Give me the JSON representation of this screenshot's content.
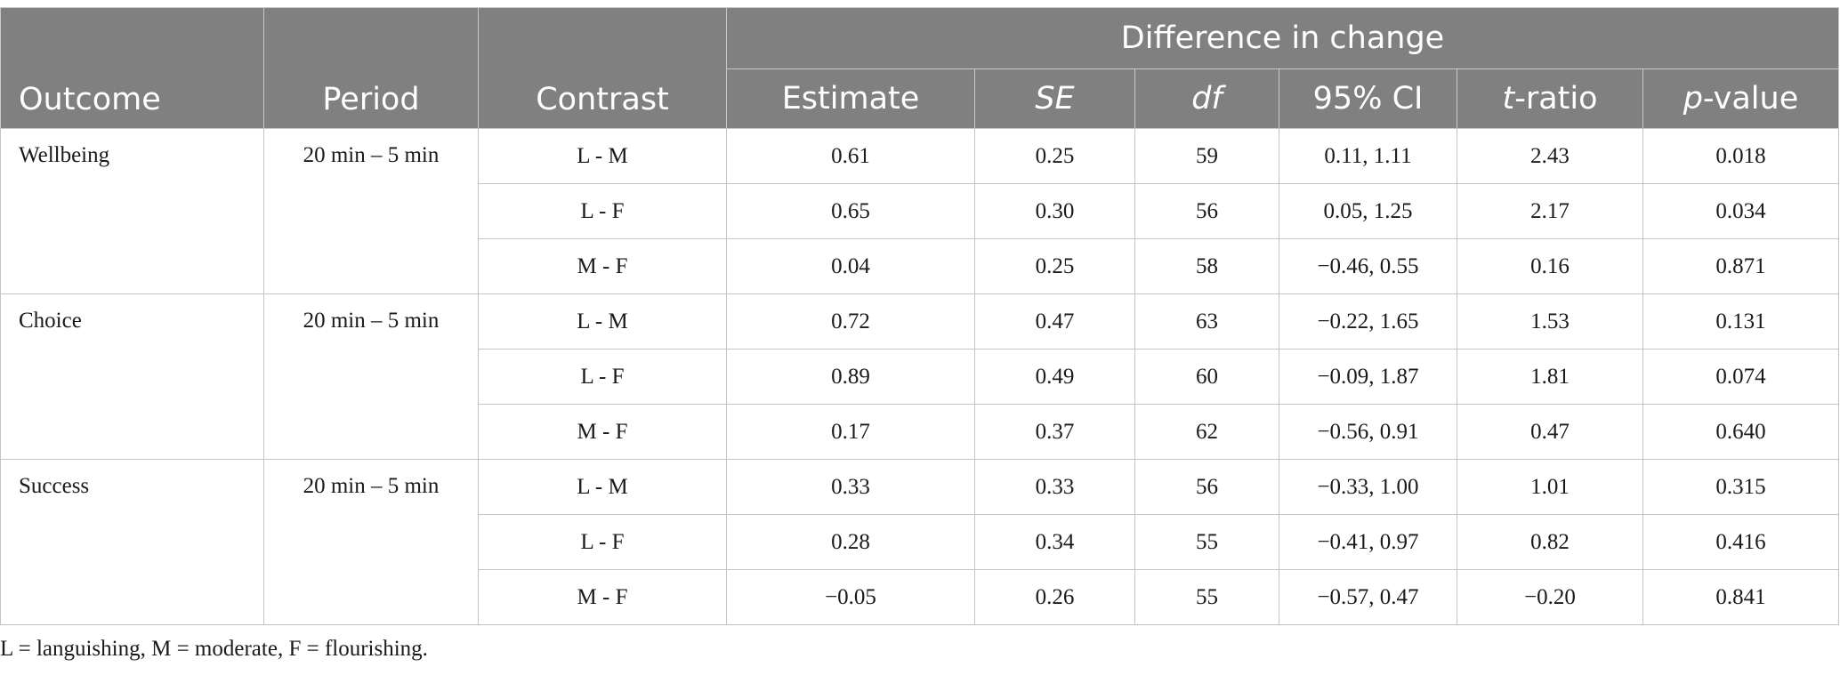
{
  "header": {
    "group_label": "Difference in change",
    "outcome": "Outcome",
    "period": "Period",
    "contrast": "Contrast",
    "estimate": "Estimate",
    "se": "SE",
    "df": "df",
    "ci": "95% CI",
    "t_italic": "t",
    "t_rest": "-ratio",
    "p_italic": "p",
    "p_rest": "-value"
  },
  "groups": [
    {
      "outcome": "Wellbeing",
      "period": "20 min – 5 min",
      "rows": [
        {
          "contrast": "L - M",
          "estimate": "0.61",
          "se": "0.25",
          "df": "59",
          "ci": "0.11, 1.11",
          "t": "2.43",
          "p": "0.018"
        },
        {
          "contrast": "L - F",
          "estimate": "0.65",
          "se": "0.30",
          "df": "56",
          "ci": "0.05, 1.25",
          "t": "2.17",
          "p": "0.034"
        },
        {
          "contrast": "M - F",
          "estimate": "0.04",
          "se": "0.25",
          "df": "58",
          "ci": "−0.46, 0.55",
          "t": "0.16",
          "p": "0.871"
        }
      ]
    },
    {
      "outcome": "Choice",
      "period": "20 min – 5 min",
      "rows": [
        {
          "contrast": "L - M",
          "estimate": "0.72",
          "se": "0.47",
          "df": "63",
          "ci": "−0.22, 1.65",
          "t": "1.53",
          "p": "0.131"
        },
        {
          "contrast": "L - F",
          "estimate": "0.89",
          "se": "0.49",
          "df": "60",
          "ci": "−0.09, 1.87",
          "t": "1.81",
          "p": "0.074"
        },
        {
          "contrast": "M - F",
          "estimate": "0.17",
          "se": "0.37",
          "df": "62",
          "ci": "−0.56, 0.91",
          "t": "0.47",
          "p": "0.640"
        }
      ]
    },
    {
      "outcome": "Success",
      "period": "20 min – 5 min",
      "rows": [
        {
          "contrast": "L - M",
          "estimate": "0.33",
          "se": "0.33",
          "df": "56",
          "ci": "−0.33, 1.00",
          "t": "1.01",
          "p": "0.315"
        },
        {
          "contrast": "L - F",
          "estimate": "0.28",
          "se": "0.34",
          "df": "55",
          "ci": "−0.41, 0.97",
          "t": "0.82",
          "p": "0.416"
        },
        {
          "contrast": "M - F",
          "estimate": "−0.05",
          "se": "0.26",
          "df": "55",
          "ci": "−0.57, 0.47",
          "t": "−0.20",
          "p": "0.841"
        }
      ]
    }
  ],
  "footnote": "L = languishing, M = moderate, F = flourishing.",
  "colors": {
    "header_bg": "#808080",
    "header_text": "#ffffff",
    "grid_line": "#c4c4c4"
  }
}
